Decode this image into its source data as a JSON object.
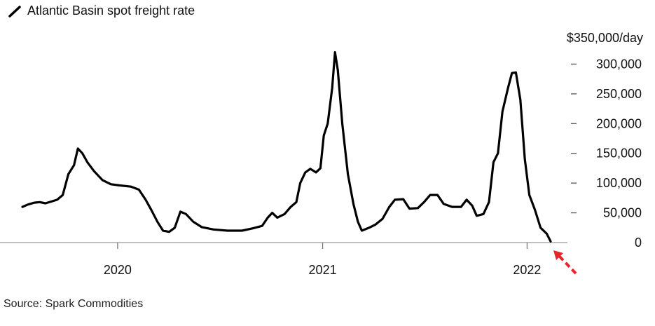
{
  "chart_data": {
    "type": "line",
    "title": "",
    "legend": {
      "label": "Atlantic Basin spot freight rate",
      "placement": "top-left"
    },
    "ylabel": "$350,000/day",
    "y_unit": "$/day",
    "ylim": [
      0,
      350000
    ],
    "yticks": [
      0,
      50000,
      100000,
      150000,
      200000,
      250000,
      300000
    ],
    "ytick_labels": [
      "0",
      "50,000",
      "100,000",
      "150,000",
      "200,000",
      "250,000",
      "300,000"
    ],
    "xlim": [
      "2019-07-10",
      "2022-02-17"
    ],
    "xticks": [
      "2020-01-01",
      "2021-01-01",
      "2022-01-01"
    ],
    "xtick_labels": [
      "2020",
      "2021",
      "2022"
    ],
    "grid": false,
    "series": [
      {
        "name": "Atlantic Basin spot freight rate",
        "color": "#000000",
        "points": [
          [
            "2019-07-15",
            60000
          ],
          [
            "2019-07-25",
            64000
          ],
          [
            "2019-08-05",
            67000
          ],
          [
            "2019-08-15",
            68000
          ],
          [
            "2019-08-25",
            66000
          ],
          [
            "2019-09-05",
            69000
          ],
          [
            "2019-09-15",
            72000
          ],
          [
            "2019-09-25",
            80000
          ],
          [
            "2019-10-05",
            115000
          ],
          [
            "2019-10-15",
            130000
          ],
          [
            "2019-10-22",
            158000
          ],
          [
            "2019-10-30",
            150000
          ],
          [
            "2019-11-08",
            135000
          ],
          [
            "2019-11-20",
            120000
          ],
          [
            "2019-12-05",
            105000
          ],
          [
            "2019-12-20",
            98000
          ],
          [
            "2020-01-05",
            96000
          ],
          [
            "2020-01-25",
            94000
          ],
          [
            "2020-02-08",
            89000
          ],
          [
            "2020-02-20",
            72000
          ],
          [
            "2020-03-01",
            55000
          ],
          [
            "2020-03-12",
            35000
          ],
          [
            "2020-03-22",
            20000
          ],
          [
            "2020-04-02",
            18000
          ],
          [
            "2020-04-12",
            25000
          ],
          [
            "2020-04-22",
            52000
          ],
          [
            "2020-05-02",
            48000
          ],
          [
            "2020-05-15",
            35000
          ],
          [
            "2020-05-30",
            26000
          ],
          [
            "2020-06-20",
            22000
          ],
          [
            "2020-07-15",
            20000
          ],
          [
            "2020-08-10",
            20000
          ],
          [
            "2020-08-30",
            24000
          ],
          [
            "2020-09-15",
            28000
          ],
          [
            "2020-09-25",
            42000
          ],
          [
            "2020-10-03",
            50000
          ],
          [
            "2020-10-12",
            42000
          ],
          [
            "2020-10-25",
            48000
          ],
          [
            "2020-11-05",
            60000
          ],
          [
            "2020-11-15",
            68000
          ],
          [
            "2020-11-22",
            100000
          ],
          [
            "2020-12-01",
            118000
          ],
          [
            "2020-12-10",
            124000
          ],
          [
            "2020-12-20",
            118000
          ],
          [
            "2020-12-28",
            125000
          ],
          [
            "2021-01-03",
            180000
          ],
          [
            "2021-01-10",
            200000
          ],
          [
            "2021-01-18",
            260000
          ],
          [
            "2021-01-23",
            320000
          ],
          [
            "2021-01-28",
            290000
          ],
          [
            "2021-02-05",
            200000
          ],
          [
            "2021-02-15",
            115000
          ],
          [
            "2021-02-25",
            65000
          ],
          [
            "2021-03-05",
            35000
          ],
          [
            "2021-03-12",
            20000
          ],
          [
            "2021-03-25",
            25000
          ],
          [
            "2021-04-05",
            30000
          ],
          [
            "2021-04-18",
            40000
          ],
          [
            "2021-04-30",
            60000
          ],
          [
            "2021-05-10",
            72000
          ],
          [
            "2021-05-25",
            73000
          ],
          [
            "2021-06-05",
            57000
          ],
          [
            "2021-06-20",
            58000
          ],
          [
            "2021-07-01",
            68000
          ],
          [
            "2021-07-12",
            80000
          ],
          [
            "2021-07-25",
            80000
          ],
          [
            "2021-08-05",
            65000
          ],
          [
            "2021-08-20",
            60000
          ],
          [
            "2021-09-05",
            60000
          ],
          [
            "2021-09-15",
            72000
          ],
          [
            "2021-09-25",
            62000
          ],
          [
            "2021-10-03",
            45000
          ],
          [
            "2021-10-15",
            48000
          ],
          [
            "2021-10-25",
            68000
          ],
          [
            "2021-11-02",
            135000
          ],
          [
            "2021-11-10",
            150000
          ],
          [
            "2021-11-18",
            220000
          ],
          [
            "2021-11-28",
            260000
          ],
          [
            "2021-12-05",
            285000
          ],
          [
            "2021-12-12",
            286000
          ],
          [
            "2021-12-20",
            240000
          ],
          [
            "2021-12-28",
            140000
          ],
          [
            "2022-01-05",
            80000
          ],
          [
            "2022-01-15",
            55000
          ],
          [
            "2022-01-25",
            25000
          ],
          [
            "2022-02-05",
            15000
          ],
          [
            "2022-02-12",
            2000
          ]
        ]
      }
    ],
    "annotations": [
      {
        "type": "arrow",
        "color": "#e3262c",
        "style": "dashed",
        "points_to": [
          "2022-02-12",
          0
        ]
      }
    ],
    "source": "Source: Spark Commodities"
  }
}
